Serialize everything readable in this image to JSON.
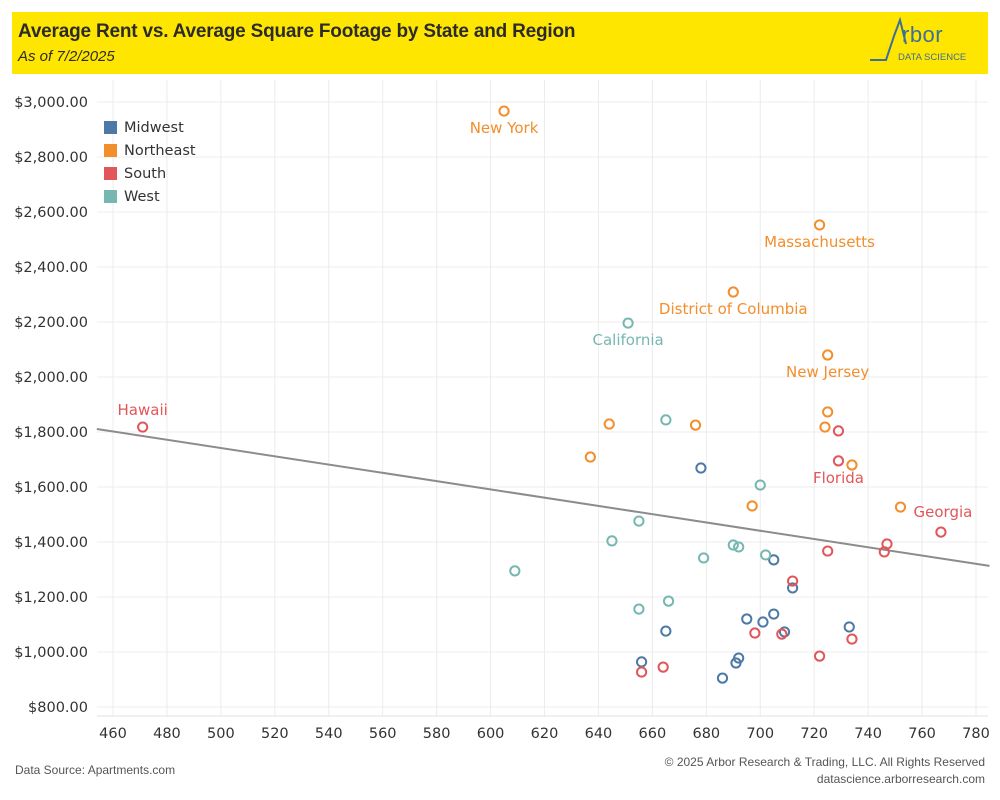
{
  "header": {
    "title": "Average Rent vs. Average Square Footage by State and Region",
    "subtitle": "As of 7/2/2025",
    "logo_word": "rbor",
    "logo_sub": "DATA SCIENCE",
    "background_color": "#ffe600"
  },
  "footer": {
    "source": "Data Source: Apartments.com",
    "copyright": "© 2025 Arbor Research & Trading, LLC. All Rights Reserved",
    "website": "datascience.arborresearch.com"
  },
  "legend": {
    "items": [
      {
        "label": "Midwest",
        "color": "#4e79a7"
      },
      {
        "label": "Northeast",
        "color": "#f28e2b"
      },
      {
        "label": "South",
        "color": "#e15759"
      },
      {
        "label": "West",
        "color": "#76b7b2"
      }
    ]
  },
  "chart_data": {
    "type": "scatter",
    "title": "Average Rent vs. Average Square Footage by State and Region",
    "xlabel": "",
    "ylabel": "",
    "xlim": [
      454,
      785
    ],
    "ylim": [
      760,
      3060
    ],
    "x_ticks": [
      460,
      480,
      500,
      520,
      540,
      560,
      580,
      600,
      620,
      640,
      660,
      680,
      700,
      720,
      740,
      760,
      780
    ],
    "y_ticks": [
      800,
      1000,
      1200,
      1400,
      1600,
      1800,
      2000,
      2200,
      2400,
      2600,
      2800,
      3000
    ],
    "y_tick_labels": [
      "$800.00",
      "$1,000.00",
      "$1,200.00",
      "$1,400.00",
      "$1,600.00",
      "$1,800.00",
      "$2,000.00",
      "$2,200.00",
      "$2,400.00",
      "$2,600.00",
      "$2,800.00",
      "$3,000.00"
    ],
    "grid": true,
    "legend_position": "top-left",
    "trend_line": {
      "x": [
        454,
        785
      ],
      "y": [
        1811,
        1313
      ],
      "color": "#8c8c8c"
    },
    "series": [
      {
        "name": "Midwest",
        "color": "#4e79a7",
        "points": [
          {
            "x": 678,
            "y": 1669
          },
          {
            "x": 705,
            "y": 1335
          },
          {
            "x": 712,
            "y": 1233
          },
          {
            "x": 705,
            "y": 1138
          },
          {
            "x": 695,
            "y": 1120
          },
          {
            "x": 701,
            "y": 1109
          },
          {
            "x": 709,
            "y": 1073
          },
          {
            "x": 733,
            "y": 1091
          },
          {
            "x": 665,
            "y": 1076
          },
          {
            "x": 656,
            "y": 964
          },
          {
            "x": 692,
            "y": 978
          },
          {
            "x": 691,
            "y": 960
          },
          {
            "x": 686,
            "y": 905
          }
        ]
      },
      {
        "name": "Northeast",
        "color": "#f28e2b",
        "points": [
          {
            "x": 605,
            "y": 2967,
            "label": "New York",
            "label_pos": "below"
          },
          {
            "x": 722,
            "y": 2553,
            "label": "Massachusetts",
            "label_pos": "below"
          },
          {
            "x": 690,
            "y": 2309,
            "label": "District of Columbia",
            "label_pos": "below"
          },
          {
            "x": 725,
            "y": 2080,
            "label": "New Jersey",
            "label_pos": "below"
          },
          {
            "x": 725,
            "y": 1873
          },
          {
            "x": 724,
            "y": 1818
          },
          {
            "x": 734,
            "y": 1680
          },
          {
            "x": 644,
            "y": 1829
          },
          {
            "x": 676,
            "y": 1825
          },
          {
            "x": 637,
            "y": 1709
          },
          {
            "x": 697,
            "y": 1531
          },
          {
            "x": 752,
            "y": 1527
          }
        ]
      },
      {
        "name": "South",
        "color": "#e15759",
        "points": [
          {
            "x": 471,
            "y": 1818,
            "label": "Hawaii",
            "label_pos": "above"
          },
          {
            "x": 729,
            "y": 1804
          },
          {
            "x": 729,
            "y": 1695,
            "label": "Florida",
            "label_pos": "below"
          },
          {
            "x": 767,
            "y": 1436,
            "label": "Georgia",
            "label_pos": "above-right"
          },
          {
            "x": 747,
            "y": 1393
          },
          {
            "x": 746,
            "y": 1364
          },
          {
            "x": 725,
            "y": 1367
          },
          {
            "x": 712,
            "y": 1258
          },
          {
            "x": 698,
            "y": 1069
          },
          {
            "x": 708,
            "y": 1065
          },
          {
            "x": 734,
            "y": 1047
          },
          {
            "x": 722,
            "y": 985
          },
          {
            "x": 664,
            "y": 945
          },
          {
            "x": 656,
            "y": 927
          }
        ]
      },
      {
        "name": "West",
        "color": "#76b7b2",
        "points": [
          {
            "x": 651,
            "y": 2196,
            "label": "California",
            "label_pos": "below"
          },
          {
            "x": 665,
            "y": 1844
          },
          {
            "x": 700,
            "y": 1607
          },
          {
            "x": 655,
            "y": 1476
          },
          {
            "x": 645,
            "y": 1404
          },
          {
            "x": 690,
            "y": 1389
          },
          {
            "x": 692,
            "y": 1382
          },
          {
            "x": 702,
            "y": 1353
          },
          {
            "x": 679,
            "y": 1342
          },
          {
            "x": 609,
            "y": 1295
          },
          {
            "x": 666,
            "y": 1185
          },
          {
            "x": 655,
            "y": 1156
          }
        ]
      }
    ]
  }
}
